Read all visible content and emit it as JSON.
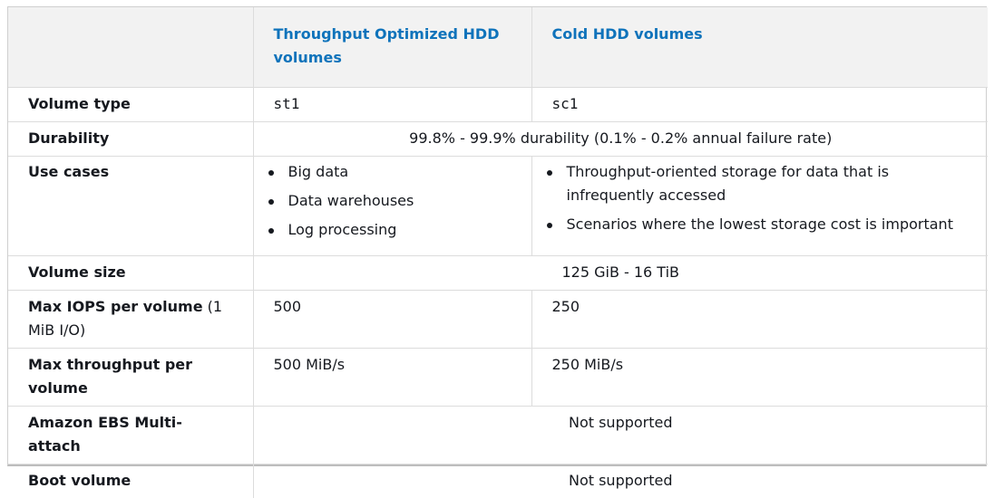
{
  "header": {
    "col1": "",
    "col2": "Throughput Optimized HDD volumes",
    "col3": "Cold HDD volumes"
  },
  "rows": {
    "volume_type": {
      "label": "Volume type",
      "st1": "st1",
      "sc1": "sc1"
    },
    "durability": {
      "label": "Durability",
      "value": "99.8% - 99.9% durability (0.1% - 0.2% annual failure rate)"
    },
    "use_cases": {
      "label": "Use cases",
      "st1": [
        "Big data",
        "Data warehouses",
        "Log processing"
      ],
      "sc1": [
        "Throughput-oriented storage for data that is infrequently accessed",
        "Scenarios where the lowest storage cost is important"
      ]
    },
    "volume_size": {
      "label": "Volume size",
      "value": "125 GiB - 16 TiB"
    },
    "max_iops": {
      "label_bold": "Max IOPS per volume",
      "label_plain": " (1 MiB I/O)",
      "st1": "500",
      "sc1": "250"
    },
    "max_throughput": {
      "label": "Max throughput per volume",
      "st1": "500 MiB/s",
      "sc1": "250 MiB/s"
    },
    "multi_attach": {
      "label": "Amazon EBS Multi-attach",
      "value": "Not supported"
    },
    "boot_volume": {
      "label": "Boot volume",
      "value": "Not supported"
    }
  }
}
